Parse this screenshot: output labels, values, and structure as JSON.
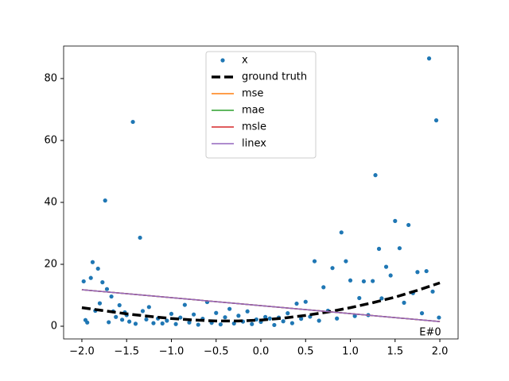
{
  "chart_data": {
    "type": "line",
    "annotation": "E#0",
    "xlim": [
      -2.204,
      2.204
    ],
    "ylim": [
      -4.1,
      90.5
    ],
    "xticks": [
      {
        "value": -2,
        "label": "−2.0"
      },
      {
        "value": -1.5,
        "label": "−1.5"
      },
      {
        "value": -1,
        "label": "−1.0"
      },
      {
        "value": -0.5,
        "label": "−0.5"
      },
      {
        "value": 0,
        "label": "0.0"
      },
      {
        "value": 0.5,
        "label": "0.5"
      },
      {
        "value": 1,
        "label": "1.0"
      },
      {
        "value": 1.5,
        "label": "1.5"
      },
      {
        "value": 2,
        "label": "2.0"
      }
    ],
    "yticks": [
      0,
      20,
      40,
      60,
      80
    ],
    "legend": "upper center",
    "series": [
      {
        "name": "x",
        "color": "#1f77b4",
        "style": "markers",
        "x": [
          -1.98,
          -1.96,
          -1.94,
          -1.9,
          -1.88,
          -1.85,
          -1.82,
          -1.8,
          -1.77,
          -1.74,
          -1.72,
          -1.7,
          -1.67,
          -1.65,
          -1.62,
          -1.58,
          -1.55,
          -1.52,
          -1.5,
          -1.47,
          -1.43,
          -1.4,
          -1.35,
          -1.32,
          -1.28,
          -1.25,
          -1.2,
          -1.15,
          -1.1,
          -1.05,
          -1.0,
          -0.95,
          -0.9,
          -0.85,
          -0.8,
          -0.75,
          -0.7,
          -0.65,
          -0.6,
          -0.55,
          -0.5,
          -0.45,
          -0.4,
          -0.35,
          -0.3,
          -0.25,
          -0.2,
          -0.15,
          -0.1,
          -0.05,
          0.0,
          0.05,
          0.1,
          0.15,
          0.2,
          0.25,
          0.3,
          0.35,
          0.4,
          0.45,
          0.5,
          0.55,
          0.6,
          0.65,
          0.7,
          0.75,
          0.8,
          0.85,
          0.9,
          0.95,
          1.0,
          1.05,
          1.1,
          1.15,
          1.2,
          1.25,
          1.28,
          1.32,
          1.35,
          1.4,
          1.45,
          1.5,
          1.55,
          1.6,
          1.65,
          1.7,
          1.75,
          1.8,
          1.85,
          1.88,
          1.92,
          1.96,
          1.99
        ],
        "values": [
          14.5,
          2,
          1.2,
          15.6,
          20.7,
          5,
          18.6,
          7.4,
          14.2,
          40.6,
          12,
          1.3,
          9.6,
          4.8,
          3,
          6.8,
          2.1,
          4.5,
          3.6,
          1.5,
          66,
          0.8,
          28.6,
          4.9,
          2.2,
          6.2,
          1,
          2.5,
          0.9,
          1.8,
          4,
          0.7,
          2.8,
          6.9,
          1.2,
          3.8,
          0.5,
          2.4,
          7.8,
          1.1,
          4.3,
          0.6,
          2.9,
          5.6,
          0.9,
          3.4,
          1.5,
          4.8,
          0.7,
          2.2,
          1.4,
          3,
          2.5,
          0.4,
          2.8,
          1.6,
          4.2,
          1,
          7.3,
          2.4,
          7.9,
          3.1,
          21,
          1.8,
          12.6,
          5,
          18.8,
          2.5,
          30.3,
          21,
          14.8,
          3.3,
          9.1,
          14.5,
          3.6,
          14.6,
          48.8,
          25,
          9,
          19.2,
          16.4,
          34,
          25.2,
          7.6,
          32.7,
          10.7,
          17.5,
          4.2,
          17.8,
          86.5,
          11.2,
          66.5,
          2.8
        ]
      },
      {
        "name": "ground truth",
        "color": "#000000",
        "style": "dashed",
        "x": [
          -2,
          -1.75,
          -1.5,
          -1.25,
          -1,
          -0.75,
          -0.5,
          -0.25,
          0,
          0.25,
          0.5,
          0.75,
          1,
          1.25,
          1.5,
          1.75,
          2
        ],
        "values": [
          6,
          5,
          4,
          3.2,
          2.5,
          2,
          1.7,
          1.7,
          2,
          2.6,
          3.5,
          4.6,
          6,
          7.6,
          9.4,
          11.6,
          14
        ]
      },
      {
        "name": "mse",
        "color": "#ff7f0e",
        "style": "line",
        "x": [
          -2,
          2
        ],
        "values": [
          11.8,
          1.5
        ]
      },
      {
        "name": "mae",
        "color": "#2ca02c",
        "style": "line",
        "x": [
          -2,
          2
        ],
        "values": [
          11.8,
          1.5
        ]
      },
      {
        "name": "msle",
        "color": "#d62728",
        "style": "line",
        "x": [
          -2,
          2
        ],
        "values": [
          11.8,
          1.5
        ]
      },
      {
        "name": "linex",
        "color": "#9467bd",
        "style": "line",
        "x": [
          -2,
          2
        ],
        "values": [
          11.8,
          1.5
        ]
      }
    ]
  }
}
